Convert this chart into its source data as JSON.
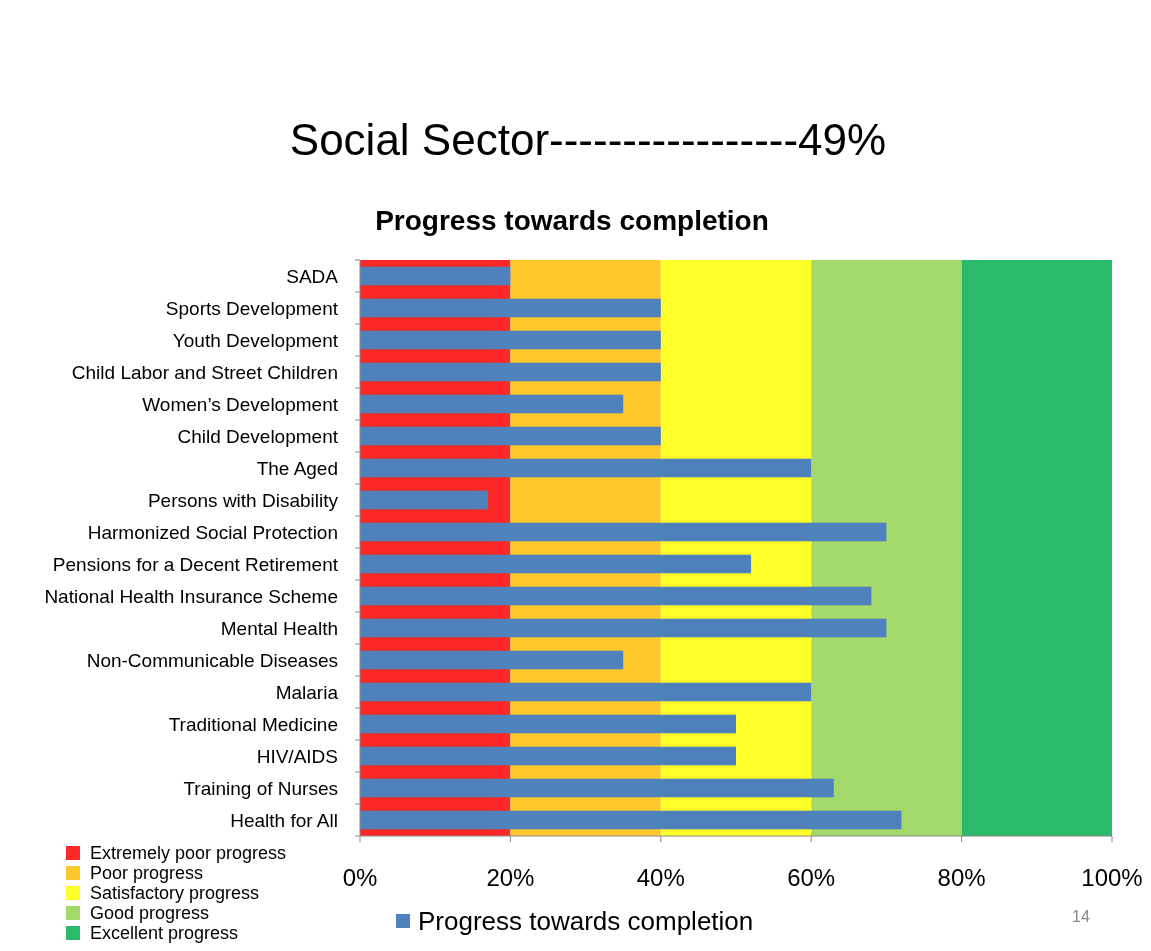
{
  "chart_data": {
    "type": "bar",
    "orientation": "horizontal",
    "title": "Social Sector-----------------49%",
    "subtitle": "Progress towards completion",
    "categories": [
      "SADA",
      "Sports Development",
      "Youth Development",
      "Child Labor and Street Children",
      "Women’s Development",
      "Child Development",
      "The Aged",
      "Persons with Disability",
      "Harmonized Social Protection",
      "Pensions for a Decent Retirement",
      "National Health Insurance Scheme",
      "Mental Health",
      "Non-Communicable Diseases",
      "Malaria",
      "Traditional Medicine",
      "HIV/AIDS",
      "Training of Nurses",
      "Health for All"
    ],
    "series": [
      {
        "name": "Progress towards completion",
        "color": "#4f81bd",
        "values": [
          20,
          40,
          40,
          40,
          35,
          40,
          60,
          17,
          70,
          52,
          68,
          70,
          35,
          60,
          50,
          50,
          63,
          72
        ]
      }
    ],
    "xlim": [
      0,
      100
    ],
    "xticks": [
      {
        "value": 0,
        "label": "0%"
      },
      {
        "value": 20,
        "label": "20%"
      },
      {
        "value": 40,
        "label": "40%"
      },
      {
        "value": 60,
        "label": "60%"
      },
      {
        "value": 80,
        "label": "80%"
      },
      {
        "value": 100,
        "label": "100%"
      }
    ],
    "bands": [
      {
        "axis": "x",
        "from": 0,
        "to": 20,
        "label": "Extremely poor progress",
        "color": "#ff2828"
      },
      {
        "axis": "x",
        "from": 20,
        "to": 40,
        "label": "Poor progress",
        "color": "#ffc729"
      },
      {
        "axis": "x",
        "from": 40,
        "to": 60,
        "label": "Satisfactory progress",
        "color": "#ffff29"
      },
      {
        "axis": "x",
        "from": 60,
        "to": 80,
        "label": "Good progress",
        "color": "#a2d96a"
      },
      {
        "axis": "x",
        "from": 80,
        "to": 100,
        "label": "Excellent progress",
        "color": "#29bb6a"
      }
    ],
    "legend": "bottom",
    "annotations": [
      "14"
    ]
  }
}
